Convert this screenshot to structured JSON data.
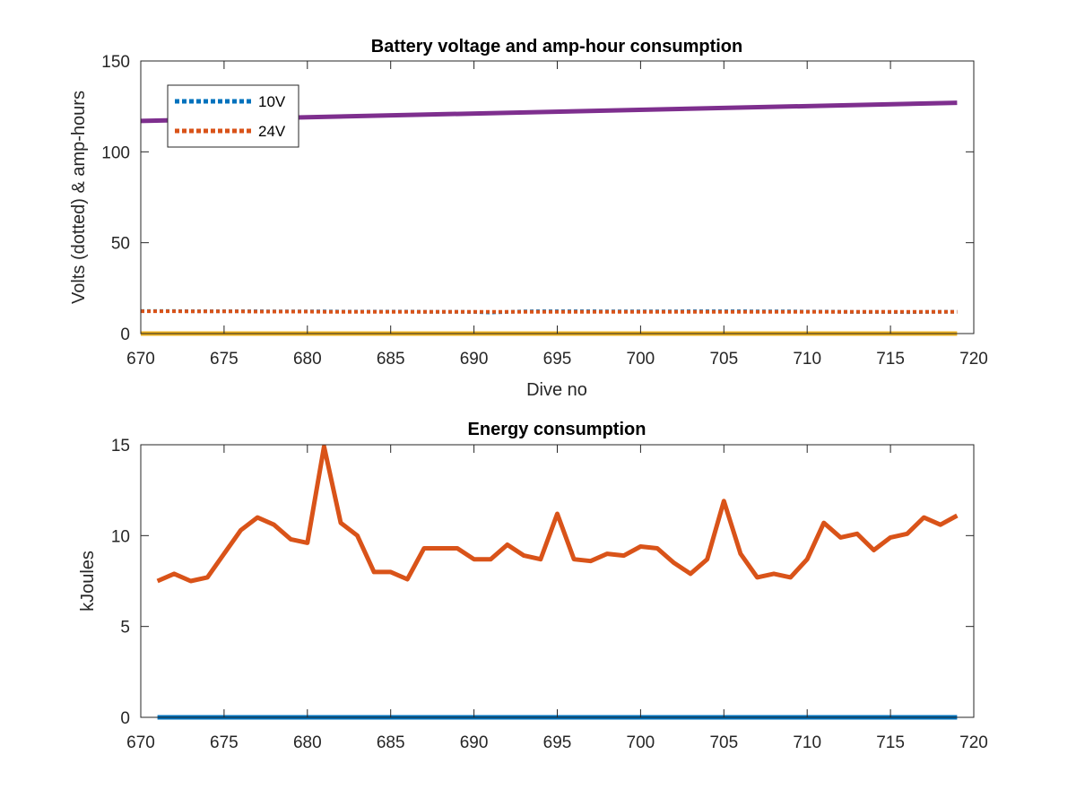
{
  "chart_data": [
    {
      "type": "line",
      "title": "Battery voltage and amp-hour consumption",
      "xlabel": "Dive no",
      "ylabel": "Volts (dotted) & amp-hours",
      "xlim": [
        670,
        720
      ],
      "ylim": [
        0,
        150
      ],
      "xticks": [
        "670",
        "675",
        "680",
        "685",
        "690",
        "695",
        "700",
        "705",
        "710",
        "715",
        "720"
      ],
      "yticks": [
        "0",
        "50",
        "100",
        "150"
      ],
      "legend_position": "top-left",
      "grid": false,
      "series": [
        {
          "name": "10V",
          "style": "dotted",
          "color": "#0072BD",
          "x": [
            670,
            671,
            672,
            673,
            674,
            675,
            676,
            677,
            678,
            679,
            680,
            681,
            682,
            683,
            684,
            685,
            686,
            687,
            688,
            689,
            690,
            691,
            692,
            693,
            694,
            695,
            696,
            697,
            698,
            699,
            700,
            701,
            702,
            703,
            704,
            705,
            706,
            707,
            708,
            709,
            710,
            711,
            712,
            713,
            714,
            715,
            716,
            717,
            718,
            719
          ],
          "y": [
            12.4,
            12.4,
            12.4,
            12.3,
            12.3,
            12.3,
            12.3,
            12.3,
            12.2,
            12.2,
            12.2,
            12.2,
            12.1,
            12.1,
            12.1,
            12.1,
            12.1,
            12.0,
            12.0,
            12.0,
            11.9,
            11.6,
            11.9,
            12.2,
            12.3,
            12.3,
            12.3,
            12.3,
            12.2,
            12.2,
            12.2,
            12.2,
            12.2,
            12.3,
            12.3,
            12.3,
            12.3,
            12.2,
            12.2,
            12.2,
            12.1,
            12.1,
            12.0,
            11.9,
            11.9,
            11.9,
            11.8,
            11.9,
            12.0,
            12.0
          ]
        },
        {
          "name": "24V",
          "style": "dotted",
          "color": "#D95319",
          "x": [
            670,
            671,
            672,
            673,
            674,
            675,
            676,
            677,
            678,
            679,
            680,
            681,
            682,
            683,
            684,
            685,
            686,
            687,
            688,
            689,
            690,
            691,
            692,
            693,
            694,
            695,
            696,
            697,
            698,
            699,
            700,
            701,
            702,
            703,
            704,
            705,
            706,
            707,
            708,
            709,
            710,
            711,
            712,
            713,
            714,
            715,
            716,
            717,
            718,
            719
          ],
          "y": [
            12.3,
            12.3,
            12.3,
            12.2,
            12.2,
            12.2,
            12.2,
            12.1,
            12.1,
            12.1,
            12.1,
            12.0,
            12.0,
            12.0,
            12.0,
            12.0,
            12.0,
            12.0,
            12.0,
            12.0,
            12.0,
            12.0,
            12.0,
            12.0,
            12.0,
            12.0,
            12.0,
            12.0,
            12.0,
            12.0,
            12.0,
            12.0,
            12.0,
            12.0,
            12.0,
            12.0,
            12.0,
            12.0,
            12.0,
            12.0,
            12.0,
            12.0,
            12.0,
            12.0,
            12.0,
            12.0,
            12.0,
            12.0,
            12.0,
            12.0
          ]
        },
        {
          "style": "solid",
          "color": "#EDB120",
          "x": [
            670,
            719
          ],
          "y": [
            0,
            0
          ]
        },
        {
          "style": "solid",
          "color": "#7E2F8E",
          "x": [
            670,
            719
          ],
          "y": [
            117,
            127
          ]
        }
      ]
    },
    {
      "type": "line",
      "title": "Energy consumption",
      "xlabel": "",
      "ylabel": "kJoules",
      "xlim": [
        670,
        720
      ],
      "ylim": [
        0,
        15
      ],
      "xticks": [
        "670",
        "675",
        "680",
        "685",
        "690",
        "695",
        "700",
        "705",
        "710",
        "715",
        "720"
      ],
      "yticks": [
        "0",
        "5",
        "10",
        "15"
      ],
      "grid": false,
      "series": [
        {
          "style": "solid",
          "color": "#0072BD",
          "x": [
            671,
            719
          ],
          "y": [
            0,
            0
          ]
        },
        {
          "style": "solid",
          "color": "#D95319",
          "x": [
            671,
            672,
            673,
            674,
            675,
            676,
            677,
            678,
            679,
            680,
            681,
            682,
            683,
            684,
            685,
            686,
            687,
            688,
            689,
            690,
            691,
            692,
            693,
            694,
            695,
            696,
            697,
            698,
            699,
            700,
            701,
            702,
            703,
            704,
            705,
            706,
            707,
            708,
            709,
            710,
            711,
            712,
            713,
            714,
            715,
            716,
            717,
            718,
            719
          ],
          "y": [
            7.5,
            7.9,
            7.5,
            7.7,
            9.0,
            10.3,
            11.0,
            10.6,
            9.8,
            9.6,
            14.9,
            10.7,
            10.0,
            8.0,
            8.0,
            7.6,
            9.3,
            9.3,
            9.3,
            8.7,
            8.7,
            9.5,
            8.9,
            8.7,
            11.2,
            8.7,
            8.6,
            9.0,
            8.9,
            9.4,
            9.3,
            8.5,
            7.9,
            8.7,
            11.9,
            9.0,
            7.7,
            7.9,
            7.7,
            8.7,
            10.7,
            9.9,
            10.1,
            9.2,
            9.9,
            10.1,
            11.0,
            10.6,
            11.1
          ]
        }
      ]
    }
  ]
}
